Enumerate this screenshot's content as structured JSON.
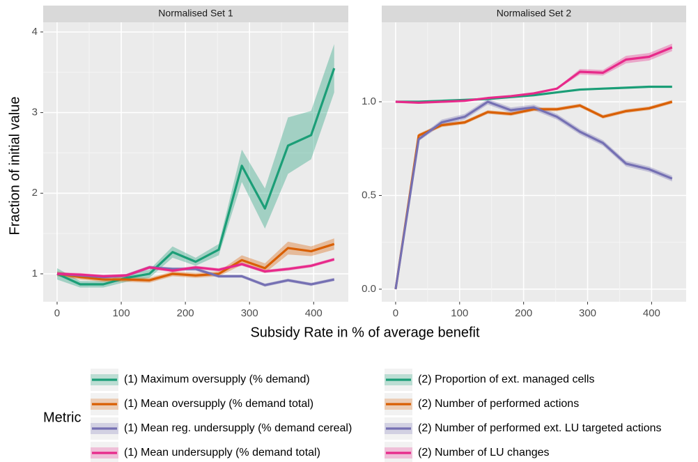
{
  "xlabel": "Subsidy Rate in % of average benefit",
  "ylabel": "Fraction of initial value",
  "legend_title": "Metric",
  "chart_data": [
    {
      "type": "line",
      "title": "Normalised Set 1",
      "x": [
        0,
        36,
        72,
        108,
        144,
        180,
        216,
        252,
        288,
        324,
        360,
        396,
        432
      ],
      "xlim": [
        -21.7,
        454
      ],
      "xticks": [
        0,
        100,
        200,
        300,
        400
      ],
      "ylim": [
        0.654,
        4.12
      ],
      "yticks": [
        1,
        2,
        3,
        4
      ],
      "grid": true,
      "series": [
        {
          "name": "(1) Maximum oversupply (% demand)",
          "color": "#1b9e77",
          "values": [
            1.0,
            0.87,
            0.87,
            0.95,
            1.0,
            1.27,
            1.15,
            1.3,
            2.34,
            1.81,
            2.59,
            2.72,
            3.55
          ],
          "lower": [
            0.93,
            0.83,
            0.83,
            0.9,
            0.95,
            1.2,
            1.1,
            1.23,
            2.14,
            1.56,
            2.24,
            2.42,
            3.25
          ],
          "upper": [
            1.07,
            0.91,
            0.91,
            1.0,
            1.05,
            1.34,
            1.2,
            1.37,
            2.54,
            2.06,
            2.94,
            3.02,
            3.85
          ]
        },
        {
          "name": "(1) Mean oversupply (% demand total)",
          "color": "#d95f02",
          "values": [
            1.0,
            0.96,
            0.93,
            0.93,
            0.92,
            1.0,
            0.98,
            1.0,
            1.17,
            1.07,
            1.32,
            1.28,
            1.37
          ],
          "lower": [
            0.97,
            0.93,
            0.9,
            0.9,
            0.89,
            0.97,
            0.95,
            0.97,
            1.11,
            1.01,
            1.24,
            1.22,
            1.3
          ],
          "upper": [
            1.03,
            0.99,
            0.96,
            0.96,
            0.95,
            1.03,
            1.01,
            1.03,
            1.23,
            1.13,
            1.4,
            1.34,
            1.44
          ]
        },
        {
          "name": "(1) Mean reg. undersupply (% demand cereal)",
          "color": "#7570b3",
          "values": [
            1.0,
            0.98,
            0.96,
            0.98,
            1.08,
            1.06,
            1.06,
            0.97,
            0.97,
            0.86,
            0.92,
            0.87,
            0.93
          ],
          "lower": [
            0.98,
            0.96,
            0.94,
            0.96,
            1.06,
            1.04,
            1.04,
            0.95,
            0.95,
            0.84,
            0.9,
            0.85,
            0.91
          ],
          "upper": [
            1.02,
            1.0,
            0.98,
            1.0,
            1.1,
            1.08,
            1.08,
            0.99,
            0.99,
            0.88,
            0.94,
            0.89,
            0.95
          ]
        },
        {
          "name": "(1) Mean undersupply (% demand total)",
          "color": "#e7298a",
          "values": [
            1.0,
            0.99,
            0.97,
            0.98,
            1.08,
            1.04,
            1.08,
            1.05,
            1.12,
            1.03,
            1.06,
            1.1,
            1.18
          ],
          "lower": [
            0.98,
            0.97,
            0.95,
            0.96,
            1.06,
            1.02,
            1.06,
            1.03,
            1.1,
            1.01,
            1.04,
            1.08,
            1.16
          ],
          "upper": [
            1.02,
            1.01,
            0.99,
            1.0,
            1.1,
            1.06,
            1.1,
            1.07,
            1.14,
            1.05,
            1.08,
            1.12,
            1.2
          ]
        }
      ]
    },
    {
      "type": "line",
      "title": "Normalised Set 2",
      "x": [
        0,
        36,
        72,
        108,
        144,
        180,
        216,
        252,
        288,
        324,
        360,
        396,
        432
      ],
      "xlim": [
        -21.7,
        454
      ],
      "xticks": [
        0,
        100,
        200,
        300,
        400
      ],
      "ylim": [
        -0.067,
        1.424
      ],
      "yticks": [
        {
          "value": 0,
          "label": "0.0"
        },
        {
          "value": 0.5,
          "label": "0.5"
        },
        {
          "value": 1,
          "label": "1.0"
        }
      ],
      "grid": true,
      "series": [
        {
          "name": "(2) Proportion of ext. managed cells",
          "color": "#1b9e77",
          "values": [
            1.0,
            1.0,
            1.005,
            1.01,
            1.015,
            1.025,
            1.035,
            1.05,
            1.065,
            1.07,
            1.075,
            1.08,
            1.08
          ],
          "lower": [
            0.995,
            0.995,
            1.0,
            1.005,
            1.01,
            1.02,
            1.03,
            1.045,
            1.06,
            1.065,
            1.07,
            1.075,
            1.075
          ],
          "upper": [
            1.005,
            1.005,
            1.01,
            1.015,
            1.02,
            1.03,
            1.04,
            1.055,
            1.07,
            1.075,
            1.08,
            1.085,
            1.085
          ]
        },
        {
          "name": "(2) Number of performed actions",
          "color": "#d95f02",
          "values": [
            0,
            0.82,
            0.875,
            0.89,
            0.945,
            0.935,
            0.96,
            0.96,
            0.98,
            0.92,
            0.95,
            0.965,
            1.0
          ],
          "lower": [
            -0.005,
            0.81,
            0.865,
            0.88,
            0.935,
            0.925,
            0.95,
            0.95,
            0.97,
            0.91,
            0.94,
            0.955,
            0.99
          ],
          "upper": [
            0.005,
            0.83,
            0.885,
            0.9,
            0.955,
            0.945,
            0.97,
            0.97,
            0.99,
            0.93,
            0.96,
            0.975,
            1.01
          ]
        },
        {
          "name": "(2) Number of performed ext. LU targeted actions",
          "color": "#7570b3",
          "values": [
            0,
            0.8,
            0.89,
            0.92,
            1.0,
            0.955,
            0.97,
            0.92,
            0.84,
            0.78,
            0.67,
            0.64,
            0.59
          ],
          "lower": [
            -0.005,
            0.79,
            0.875,
            0.905,
            0.985,
            0.94,
            0.955,
            0.905,
            0.825,
            0.765,
            0.655,
            0.625,
            0.575
          ],
          "upper": [
            0.005,
            0.81,
            0.905,
            0.935,
            1.015,
            0.97,
            0.985,
            0.935,
            0.855,
            0.795,
            0.685,
            0.655,
            0.605
          ]
        },
        {
          "name": "(2) Number of LU changes",
          "color": "#e7298a",
          "values": [
            1.0,
            0.995,
            1.0,
            1.005,
            1.02,
            1.03,
            1.045,
            1.07,
            1.16,
            1.155,
            1.225,
            1.24,
            1.29
          ],
          "lower": [
            0.995,
            0.99,
            0.995,
            1.0,
            1.015,
            1.025,
            1.04,
            1.065,
            1.145,
            1.14,
            1.205,
            1.22,
            1.27
          ],
          "upper": [
            1.005,
            1.0,
            1.005,
            1.01,
            1.025,
            1.035,
            1.05,
            1.075,
            1.175,
            1.17,
            1.245,
            1.26,
            1.31
          ]
        }
      ]
    }
  ]
}
